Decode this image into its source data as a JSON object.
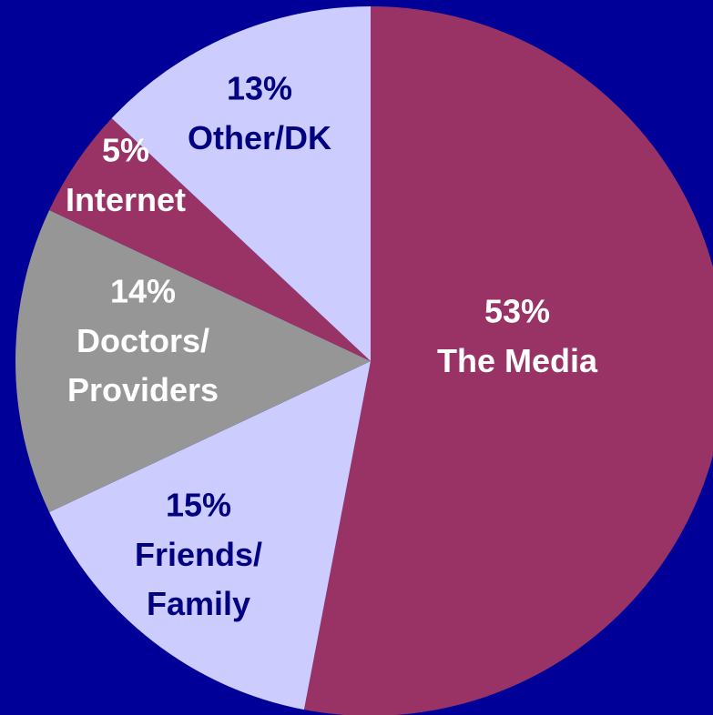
{
  "chart_data": {
    "type": "pie",
    "categories": [
      "The Media",
      "Friends/ Family",
      "Doctors/ Providers",
      "Internet",
      "Other/DK"
    ],
    "values": [
      53,
      15,
      14,
      5,
      13
    ],
    "value_labels": [
      "53%",
      "15%",
      "14%",
      "5%",
      "13%"
    ],
    "colors": [
      "#993366",
      "#ccccff",
      "#969696",
      "#993366",
      "#ccccff"
    ],
    "label_colors": [
      "#ffffff",
      "#000080",
      "#ffffff",
      "#ffffff",
      "#000080"
    ]
  }
}
